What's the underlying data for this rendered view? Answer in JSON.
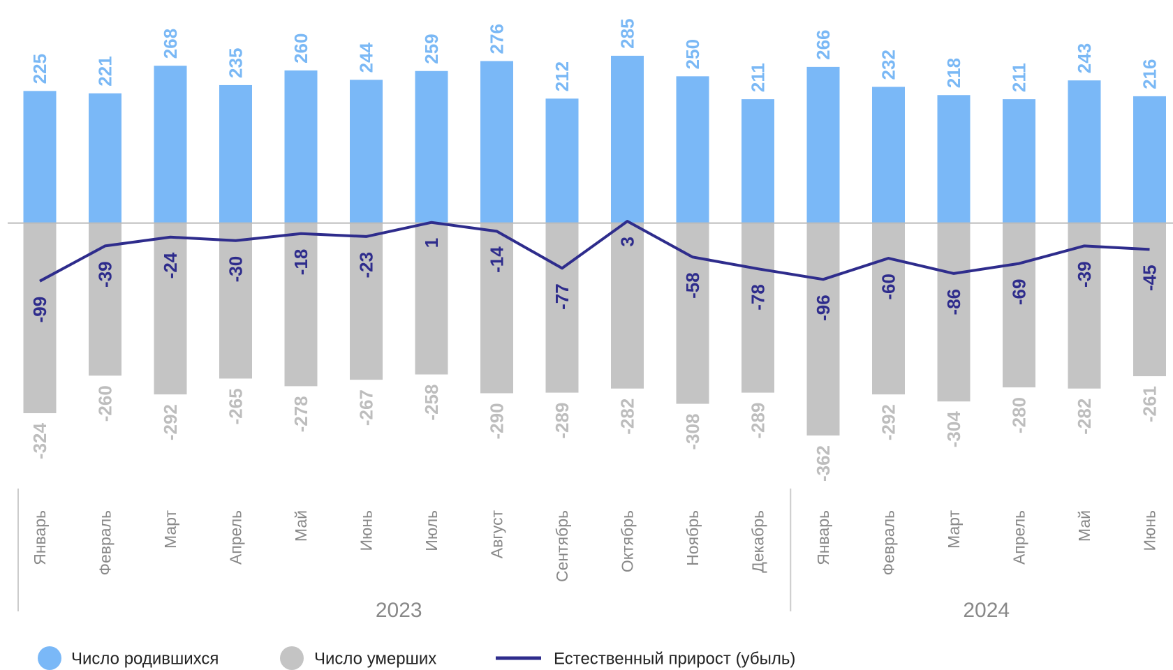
{
  "chart_data": {
    "type": "bar-line",
    "categories": [
      "Январь",
      "Февраль",
      "Март",
      "Апрель",
      "Май",
      "Июнь",
      "Июль",
      "Август",
      "Сентябрь",
      "Октябрь",
      "Ноябрь",
      "Декабрь",
      "Январь",
      "Февраль",
      "Март",
      "Апрель",
      "Май",
      "Июнь"
    ],
    "groups": [
      {
        "label": "2023",
        "span": 12
      },
      {
        "label": "2024",
        "span": 6
      }
    ],
    "series": [
      {
        "name": "Число родившихся",
        "type": "bar",
        "color": "#7ab8f7",
        "label_color": "#7ab8f5",
        "values": [
          225,
          221,
          268,
          235,
          260,
          244,
          259,
          276,
          212,
          285,
          250,
          211,
          266,
          232,
          218,
          211,
          243,
          216
        ]
      },
      {
        "name": "Число умерших",
        "type": "bar",
        "color": "#c4c4c4",
        "label_color": "#bdbdbd",
        "values": [
          -324,
          -260,
          -292,
          -265,
          -278,
          -267,
          -258,
          -290,
          -289,
          -282,
          -308,
          -289,
          -362,
          -292,
          -304,
          -280,
          -282,
          -261
        ]
      },
      {
        "name": "Естественный прирост (убыль)",
        "type": "line",
        "color": "#2e2c8c",
        "label_color": "#2e2c8c",
        "values": [
          -99,
          -39,
          -24,
          -30,
          -18,
          -23,
          1,
          -14,
          -77,
          3,
          -58,
          -78,
          -96,
          -60,
          -86,
          -69,
          -39,
          -45
        ]
      }
    ],
    "ylim": [
      -450,
      380
    ],
    "legend": "bottom"
  }
}
